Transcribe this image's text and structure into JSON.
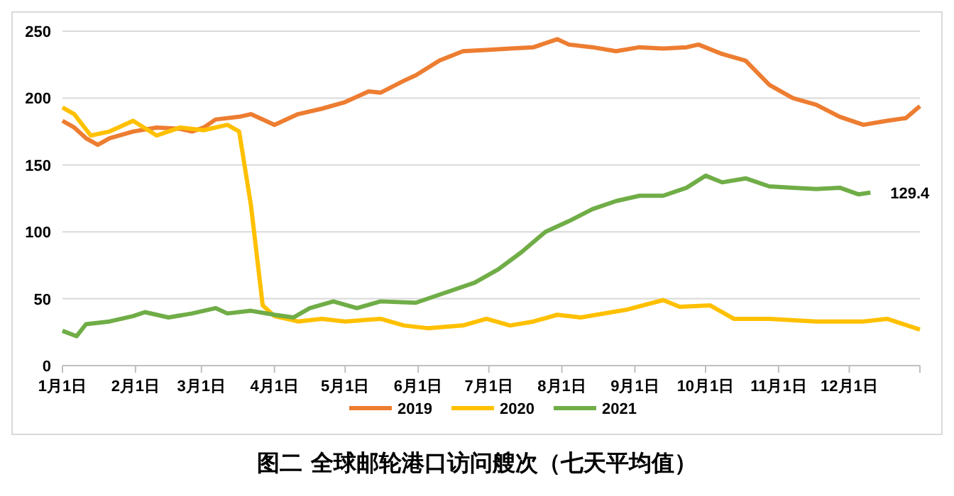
{
  "chart_data": {
    "type": "line",
    "title": "图二 全球邮轮港口访问艘次（七天平均值）",
    "xlim": [
      "--01-01",
      "--12-31"
    ],
    "xticks": [
      {
        "value": "--01-01",
        "label": "1月1日"
      },
      {
        "value": "--02-01",
        "label": "2月1日"
      },
      {
        "value": "--03-01",
        "label": "3月1日"
      },
      {
        "value": "--04-01",
        "label": "4月1日"
      },
      {
        "value": "--05-01",
        "label": "5月1日"
      },
      {
        "value": "--06-01",
        "label": "6月1日"
      },
      {
        "value": "--07-01",
        "label": "7月1日"
      },
      {
        "value": "--08-01",
        "label": "8月1日"
      },
      {
        "value": "--09-01",
        "label": "9月1日"
      },
      {
        "value": "--10-01",
        "label": "10月1日"
      },
      {
        "value": "--11-01",
        "label": "11月1日"
      },
      {
        "value": "--12-01",
        "label": "12月1日"
      },
      {
        "value": "--12-31",
        "label": null
      }
    ],
    "ylim": [
      0,
      250
    ],
    "yticks": [
      0,
      50,
      100,
      150,
      200,
      250
    ],
    "grid": "y",
    "legend": "bottom",
    "marker": "none",
    "line_style": "solid",
    "series": [
      {
        "name": "2019",
        "color": "#ed7d31",
        "x": [
          "--01-01",
          "--01-06",
          "--01-11",
          "--01-16",
          "--01-21",
          "--01-31",
          "--02-10",
          "--02-20",
          "--02-25",
          "--03-02",
          "--03-07",
          "--03-17",
          "--03-22",
          "--04-01",
          "--04-11",
          "--04-21",
          "--05-01",
          "--05-11",
          "--05-16",
          "--05-26",
          "--05-31",
          "--06-10",
          "--06-20",
          "--06-30",
          "--07-10",
          "--07-20",
          "--07-30",
          "--08-04",
          "--08-14",
          "--08-24",
          "--09-03",
          "--09-13",
          "--09-23",
          "--09-28",
          "--10-08",
          "--10-18",
          "--10-28",
          "--11-07",
          "--11-17",
          "--11-27",
          "--12-07",
          "--12-17",
          "--12-25",
          "--12-31"
        ],
        "values": [
          183,
          178,
          170,
          165,
          170,
          175,
          178,
          177,
          175,
          178,
          184,
          186,
          188,
          180,
          188,
          192,
          197,
          205,
          204,
          213,
          217,
          228,
          235,
          236,
          237,
          238,
          244,
          240,
          238,
          235,
          238,
          237,
          238,
          240,
          233,
          228,
          210,
          200,
          195,
          186,
          180,
          183,
          185,
          194
        ]
      },
      {
        "name": "2020",
        "color": "#ffc000",
        "x": [
          "--01-01",
          "--01-06",
          "--01-13",
          "--01-21",
          "--01-31",
          "--02-10",
          "--02-20",
          "--03-02",
          "--03-12",
          "--03-17",
          "--03-22",
          "--03-27",
          "--04-01",
          "--04-11",
          "--04-21",
          "--05-01",
          "--05-16",
          "--05-26",
          "--06-05",
          "--06-20",
          "--06-30",
          "--07-10",
          "--07-20",
          "--07-30",
          "--08-09",
          "--08-29",
          "--09-13",
          "--09-20",
          "--10-03",
          "--10-13",
          "--10-28",
          "--11-17",
          "--12-07",
          "--12-17",
          "--12-31"
        ],
        "values": [
          193,
          188,
          172,
          175,
          183,
          172,
          178,
          176,
          180,
          175,
          120,
          45,
          37,
          33,
          35,
          33,
          35,
          30,
          28,
          30,
          35,
          30,
          33,
          38,
          36,
          42,
          49,
          44,
          45,
          35,
          35,
          33,
          33,
          35,
          27
        ]
      },
      {
        "name": "2021",
        "color": "#70ad47",
        "x": [
          "--01-01",
          "--01-07",
          "--01-11",
          "--01-21",
          "--01-31",
          "--02-05",
          "--02-15",
          "--02-25",
          "--03-07",
          "--03-12",
          "--03-22",
          "--04-01",
          "--04-09",
          "--04-16",
          "--04-26",
          "--05-06",
          "--05-16",
          "--05-31",
          "--06-15",
          "--06-25",
          "--07-05",
          "--07-15",
          "--07-25",
          "--08-04",
          "--08-14",
          "--08-24",
          "--09-03",
          "--09-13",
          "--09-23",
          "--10-01",
          "--10-08",
          "--10-18",
          "--10-28",
          "--11-07",
          "--11-17",
          "--11-27",
          "--12-05",
          "--12-10"
        ],
        "values": [
          26,
          22,
          31,
          33,
          37,
          40,
          36,
          39,
          43,
          39,
          41,
          38,
          36,
          43,
          48,
          43,
          48,
          47,
          56,
          62,
          72,
          85,
          100,
          108,
          117,
          123,
          127,
          127,
          133,
          142,
          137,
          140,
          134,
          133,
          132,
          133,
          128,
          129.4
        ]
      }
    ],
    "annotations": [
      {
        "text": "129.4",
        "x": "--12-10",
        "y": 129.4
      }
    ]
  }
}
